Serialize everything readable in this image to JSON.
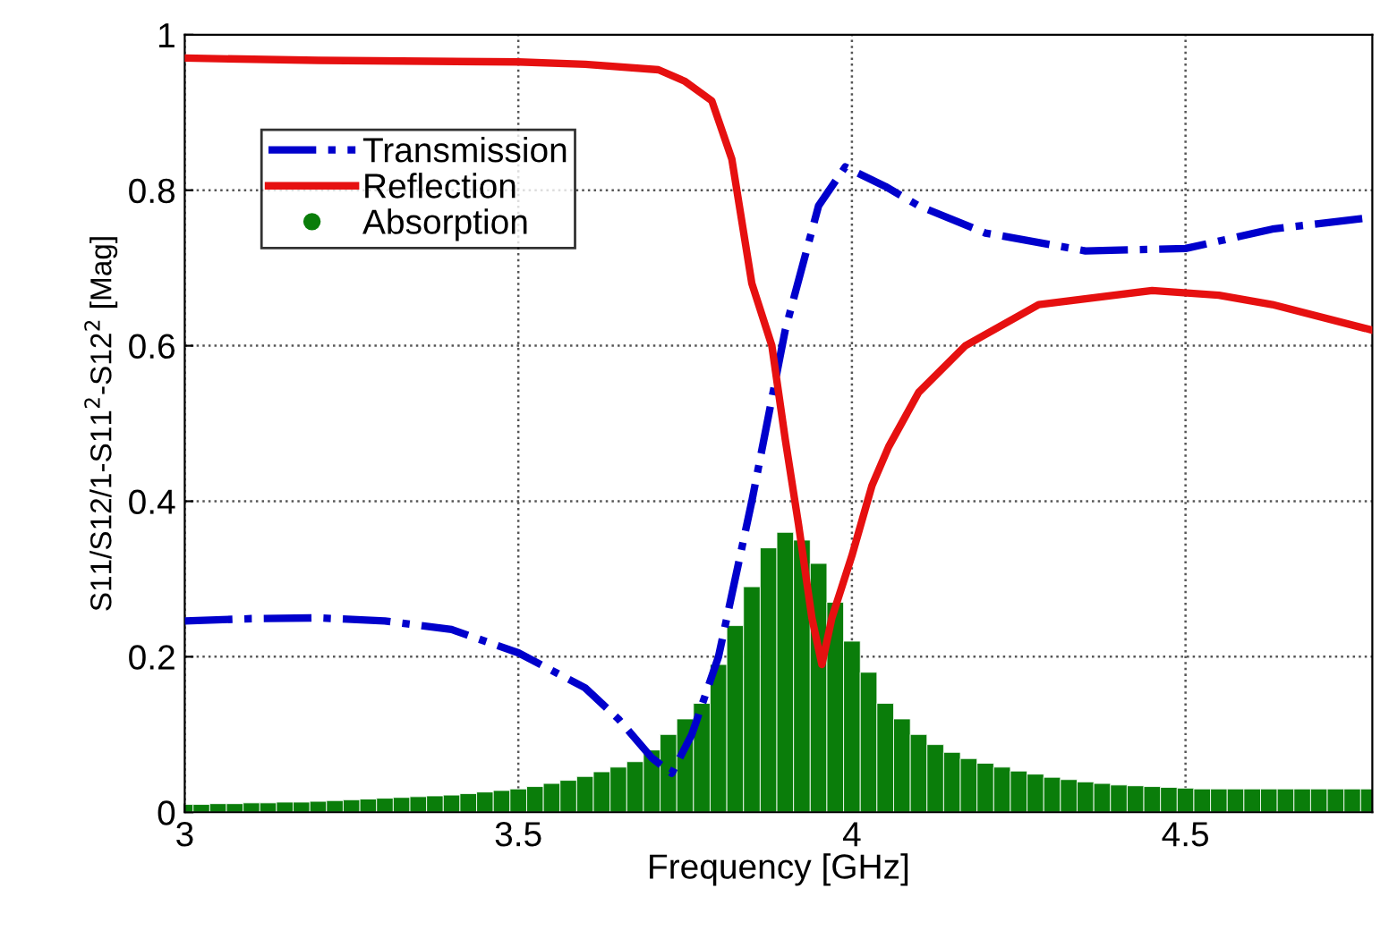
{
  "chart_data": {
    "type": "line",
    "xlabel": "Frequency [GHz]",
    "ylabel": "S11/S12/1-S11$^{2}$-S12$^{2}$ [Mag]",
    "xlim": [
      3,
      4.78
    ],
    "xticks": [
      3,
      3.5,
      4,
      4.5
    ],
    "ylim": [
      0,
      1
    ],
    "yticks": [
      0,
      0.2,
      0.4,
      0.6,
      0.8,
      1
    ],
    "grid": true,
    "legend": "top left",
    "series": [
      {
        "name": "Transmission",
        "color": "#0000cc",
        "line_style": "dashdot",
        "x": [
          3.0,
          3.1,
          3.2,
          3.3,
          3.4,
          3.5,
          3.6,
          3.65,
          3.7,
          3.73,
          3.76,
          3.8,
          3.85,
          3.9,
          3.95,
          3.99,
          4.05,
          4.1,
          4.2,
          4.35,
          4.5,
          4.63,
          4.78
        ],
        "values": [
          0.246,
          0.249,
          0.25,
          0.246,
          0.235,
          0.205,
          0.16,
          0.12,
          0.07,
          0.05,
          0.1,
          0.2,
          0.4,
          0.62,
          0.78,
          0.83,
          0.805,
          0.78,
          0.745,
          0.722,
          0.725,
          0.75,
          0.765
        ]
      },
      {
        "name": "Reflection",
        "color": "#e61010",
        "line_style": "solid",
        "x": [
          3.0,
          3.2,
          3.5,
          3.6,
          3.71,
          3.75,
          3.79,
          3.82,
          3.85,
          3.88,
          3.9,
          3.92,
          3.94,
          3.955,
          3.97,
          4.0,
          4.03,
          4.055,
          4.1,
          4.17,
          4.28,
          4.45,
          4.55,
          4.63,
          4.78
        ],
        "values": [
          0.97,
          0.967,
          0.965,
          0.962,
          0.955,
          0.94,
          0.915,
          0.84,
          0.68,
          0.6,
          0.48,
          0.37,
          0.25,
          0.19,
          0.25,
          0.33,
          0.42,
          0.47,
          0.54,
          0.6,
          0.653,
          0.671,
          0.665,
          0.653,
          0.62
        ]
      },
      {
        "name": "Absorption",
        "type": "bar",
        "color": "#0a7d0a",
        "marker": "circle",
        "x": [
          3.0,
          3.025,
          3.05,
          3.075,
          3.1,
          3.125,
          3.15,
          3.175,
          3.2,
          3.225,
          3.25,
          3.275,
          3.3,
          3.325,
          3.35,
          3.375,
          3.4,
          3.425,
          3.45,
          3.475,
          3.5,
          3.525,
          3.55,
          3.575,
          3.6,
          3.625,
          3.65,
          3.675,
          3.7,
          3.725,
          3.75,
          3.775,
          3.8,
          3.825,
          3.85,
          3.875,
          3.9,
          3.925,
          3.95,
          3.975,
          4.0,
          4.025,
          4.05,
          4.075,
          4.1,
          4.125,
          4.15,
          4.175,
          4.2,
          4.225,
          4.25,
          4.275,
          4.3,
          4.325,
          4.35,
          4.375,
          4.4,
          4.425,
          4.45,
          4.475,
          4.5,
          4.525,
          4.55,
          4.575,
          4.6,
          4.625,
          4.65,
          4.675,
          4.7,
          4.725,
          4.75,
          4.775
        ],
        "values": [
          0.01,
          0.01,
          0.011,
          0.011,
          0.012,
          0.012,
          0.013,
          0.013,
          0.014,
          0.015,
          0.016,
          0.017,
          0.018,
          0.019,
          0.02,
          0.021,
          0.022,
          0.024,
          0.026,
          0.028,
          0.03,
          0.033,
          0.037,
          0.041,
          0.046,
          0.052,
          0.058,
          0.065,
          0.08,
          0.1,
          0.12,
          0.14,
          0.19,
          0.24,
          0.29,
          0.34,
          0.36,
          0.35,
          0.32,
          0.27,
          0.22,
          0.18,
          0.14,
          0.12,
          0.1,
          0.087,
          0.077,
          0.069,
          0.063,
          0.058,
          0.053,
          0.049,
          0.045,
          0.042,
          0.039,
          0.037,
          0.035,
          0.034,
          0.033,
          0.032,
          0.031,
          0.03,
          0.03,
          0.03,
          0.03,
          0.03,
          0.03,
          0.03,
          0.03,
          0.03,
          0.03,
          0.03
        ]
      }
    ]
  }
}
